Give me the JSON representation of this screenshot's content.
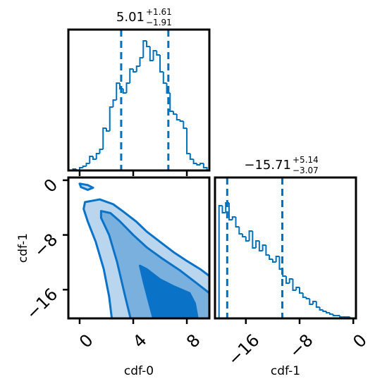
{
  "chart_data": [
    {
      "type": "histogram",
      "color": "#0072bd",
      "title": {
        "main": "5.01",
        "plus": "+1.61",
        "minus": "−1.91"
      },
      "bins": [
        -0.5,
        -0.25,
        0,
        0.25,
        0.5,
        0.75,
        1,
        1.25,
        1.5,
        1.75,
        2,
        2.25,
        2.5,
        2.75,
        3,
        3.25,
        3.5,
        3.75,
        4,
        4.25,
        4.5,
        4.75,
        5,
        5.25,
        5.5,
        5.75,
        6,
        6.25,
        6.5,
        6.75,
        7,
        7.25,
        7.5,
        7.75,
        8,
        8.25,
        8.5,
        8.75,
        9,
        9.25,
        9.5
      ],
      "counts": [
        1,
        0,
        2,
        3,
        5,
        10,
        8,
        12,
        15,
        30,
        28,
        45,
        50,
        62,
        58,
        55,
        62,
        72,
        70,
        74,
        80,
        92,
        88,
        78,
        85,
        82,
        70,
        62,
        55,
        42,
        40,
        36,
        35,
        30,
        12,
        8,
        5,
        4,
        5,
        2
      ],
      "dashed_lines": [
        3.1,
        6.62
      ],
      "xlim": [
        -0.84,
        9.68
      ],
      "ylim": [
        0,
        100
      ],
      "xticks": [
        0,
        4,
        8
      ]
    },
    {
      "type": "histogram",
      "color": "#0072bd",
      "title": {
        "main": "−15.71",
        "plus": "+5.14",
        "minus": "−3.07"
      },
      "bins": [
        -20,
        -19.5,
        -19,
        -18.5,
        -18,
        -17.5,
        -17,
        -16.5,
        -16,
        -15.5,
        -15,
        -14.5,
        -14,
        -13.5,
        -13,
        -12.5,
        -12,
        -11.5,
        -11,
        -10.5,
        -10,
        -9.5,
        -9,
        -8.5,
        -8,
        -7.5,
        -7,
        -6.5,
        -6,
        -5.5,
        -5,
        -4.5,
        -4,
        -3.5,
        -3,
        -2.5,
        -2,
        -1.5,
        -1,
        -0.5,
        0
      ],
      "counts": [
        80,
        75,
        82,
        70,
        72,
        65,
        60,
        58,
        55,
        62,
        50,
        55,
        48,
        52,
        45,
        42,
        40,
        44,
        35,
        30,
        25,
        28,
        20,
        22,
        18,
        15,
        14,
        10,
        12,
        8,
        6,
        5,
        4,
        3,
        2,
        2,
        1,
        1,
        1,
        0
      ],
      "dashed_lines": [
        -18.78,
        -10.57
      ],
      "xlim": [
        -20.6,
        0.4
      ],
      "ylim": [
        0,
        100
      ],
      "xticks": [
        {
          "value": -16,
          "label": "−16"
        },
        {
          "value": -8,
          "label": "−8"
        },
        0
      ],
      "xlabel": "cdf-1"
    },
    {
      "type": "contour",
      "line_color": "#0a72c7",
      "contours": [
        {
          "color": "#b9d6ee",
          "x": [
            0.4,
            1.5,
            2.5,
            3.2,
            4.2,
            5.0,
            6.0,
            7.0,
            8.0,
            9.0,
            9.68,
            9.68,
            2.4,
            2.2,
            1.8,
            1.2,
            0.6,
            0.3
          ],
          "y": [
            -3.2,
            -2.8,
            -3.5,
            -4.5,
            -6,
            -7.5,
            -9,
            -10.5,
            -11.8,
            -13,
            -14,
            -20.2,
            -20.2,
            -17,
            -13,
            -9,
            -6,
            -4.2
          ]
        },
        {
          "color": "#b9d6ee",
          "x": [
            0,
            0.6,
            1.0,
            0.6,
            0.1
          ],
          "y": [
            -0.5,
            -0.7,
            -1.1,
            -1.4,
            -1.0
          ]
        },
        {
          "color": "#7ab0de",
          "x": [
            1.6,
            2.3,
            3.0,
            4.0,
            5.0,
            6.2,
            7.5,
            8.7,
            9.68,
            9.68,
            3.8,
            3.4,
            2.8,
            2.2,
            1.6
          ],
          "y": [
            -4.5,
            -4.8,
            -6,
            -8,
            -9.8,
            -11.5,
            -13.2,
            -15,
            -16.5,
            -20.2,
            -20.2,
            -17,
            -12,
            -8,
            -5.5
          ]
        },
        {
          "color": "#0a72c7",
          "x": [
            4.5,
            5.0,
            6.0,
            7.0,
            8.2,
            8.6,
            8.8,
            5.5,
            5.2,
            4.8
          ],
          "y": [
            -12.5,
            -13,
            -14.5,
            -15.5,
            -16.5,
            -18,
            -20.2,
            -20.2,
            -18,
            -15
          ]
        }
      ],
      "xlim": [
        -0.84,
        9.68
      ],
      "ylim": [
        -20.2,
        0.4
      ],
      "xticks": [
        0,
        4,
        8
      ],
      "yticks": [
        0,
        {
          "value": -8,
          "label": "−8"
        },
        {
          "value": -16,
          "label": "−16"
        }
      ],
      "xlabel": "cdf-0",
      "ylabel": "cdf-1"
    }
  ]
}
